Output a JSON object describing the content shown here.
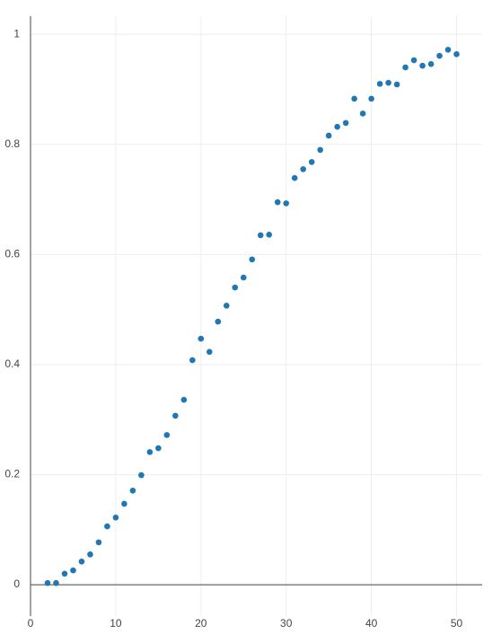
{
  "chart_data": {
    "type": "scatter",
    "color": "#1f77b4",
    "grid": true,
    "x": [
      2,
      3,
      4,
      5,
      6,
      7,
      8,
      9,
      10,
      11,
      12,
      13,
      14,
      15,
      16,
      17,
      18,
      19,
      20,
      21,
      22,
      23,
      24,
      25,
      26,
      27,
      28,
      29,
      30,
      31,
      32,
      33,
      34,
      35,
      36,
      37,
      38,
      39,
      40,
      41,
      42,
      43,
      44,
      45,
      46,
      47,
      48,
      49,
      50
    ],
    "values": [
      0.003,
      0.003,
      0.02,
      0.026,
      0.042,
      0.055,
      0.077,
      0.106,
      0.122,
      0.147,
      0.171,
      0.199,
      0.241,
      0.248,
      0.272,
      0.307,
      0.336,
      0.408,
      0.447,
      0.423,
      0.478,
      0.507,
      0.54,
      0.558,
      0.591,
      0.635,
      0.636,
      0.695,
      0.693,
      0.739,
      0.755,
      0.768,
      0.79,
      0.816,
      0.832,
      0.839,
      0.883,
      0.856,
      0.883,
      0.91,
      0.912,
      0.909,
      0.94,
      0.953,
      0.943,
      0.946,
      0.961,
      0.972,
      0.964
    ],
    "xlim": [
      0,
      53
    ],
    "xticks": [
      0,
      10,
      20,
      30,
      40,
      50
    ],
    "ylim": [
      -0.057,
      1.033
    ],
    "yticks": [
      0,
      0.2,
      0.4,
      0.6,
      0.8,
      1
    ]
  }
}
